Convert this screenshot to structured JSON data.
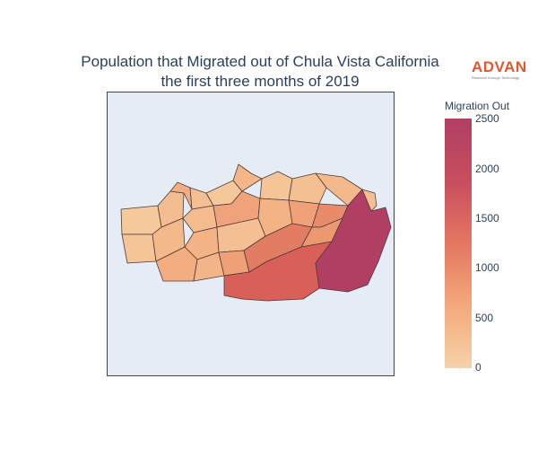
{
  "title": {
    "line1": "Population that Migrated out of Chula Vista California",
    "line2": "the first three months of 2019"
  },
  "logo": {
    "name": "ADVAN",
    "tagline": "Research through Technology"
  },
  "colorbar": {
    "title": "Migration Out",
    "ticks": [
      "0",
      "500",
      "1000",
      "1500",
      "2000",
      "2500"
    ],
    "colors": [
      "#f6d2a9",
      "#f3a97b",
      "#e47761",
      "#c84e5e",
      "#b13f64"
    ]
  },
  "map_style": {
    "background": "#e5ecf6",
    "border": "#4d3b3b"
  }
}
